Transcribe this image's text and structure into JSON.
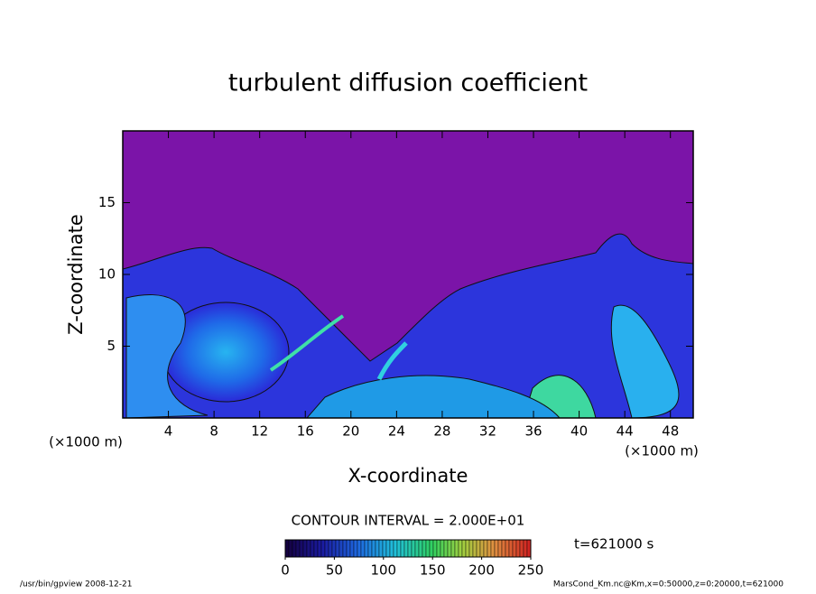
{
  "chart_data": {
    "type": "contour",
    "title": "turbulent diffusion coefficient",
    "xlabel": "X-coordinate",
    "ylabel": "Z-coordinate",
    "x_unit": "(×1000 m)",
    "xlim": [
      0,
      50
    ],
    "xticks": [
      4,
      8,
      12,
      16,
      20,
      24,
      28,
      32,
      36,
      40,
      44,
      48
    ],
    "ylim": [
      0,
      20
    ],
    "yticks": [
      5,
      10,
      15
    ],
    "background_color": "#7b14a8",
    "contour_interval": "CONTOUR INTERVAL = 2.000E+01",
    "time_label": "t=621000 s",
    "colorbar": {
      "lim": [
        0,
        250
      ],
      "ticks": [
        0,
        50,
        100,
        150,
        200,
        250
      ]
    },
    "footer_left": "/usr/bin/gpview   2008-12-21",
    "footer_right": "MarsCond_Km.nc@Km,x=0:50000,z=0:20000,t=621000"
  }
}
